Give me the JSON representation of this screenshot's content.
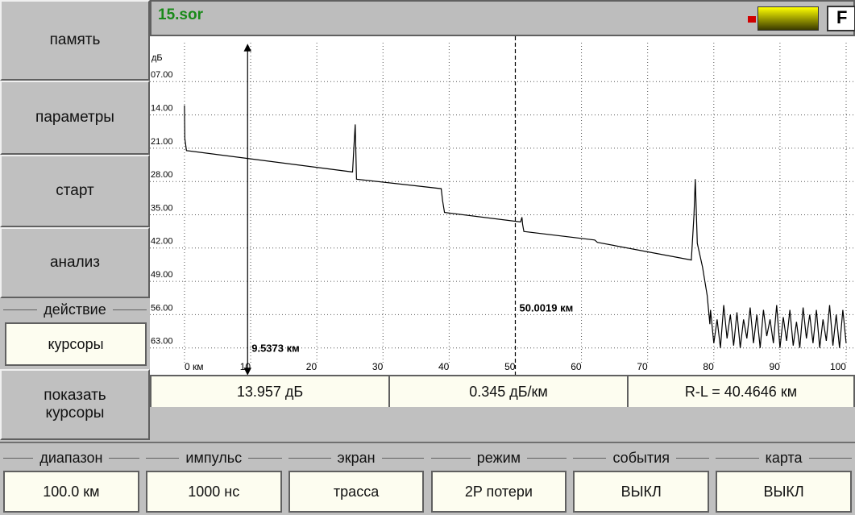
{
  "menu": [
    "память",
    "параметры",
    "старт",
    "анализ"
  ],
  "action": {
    "label": "действие",
    "value": "курсоры"
  },
  "show_cursors": "показать курсоры",
  "file": "15.sor",
  "flag": "F",
  "chart_data": {
    "type": "line",
    "y_unit": "дБ",
    "x": [
      0,
      0.05,
      0.3,
      25.4,
      25.6,
      25.8,
      26.0,
      38.8,
      39.0,
      39.3,
      50.8,
      51.0,
      51.1,
      51.3,
      62.0,
      62.4,
      76.6,
      77.0,
      77.2,
      77.5,
      78.3,
      79.0,
      79.4,
      79.5,
      80,
      80.5,
      81,
      81.5,
      82,
      82.5,
      83,
      83.5,
      84,
      84.5,
      85,
      85.5,
      86,
      86.5,
      87,
      87.5,
      88,
      88.5,
      89,
      89.5,
      90,
      90.5,
      91,
      91.5,
      92,
      92.5,
      93,
      93.5,
      94,
      94.5,
      95,
      95.5,
      96,
      96.5,
      97,
      97.5,
      98,
      98.5,
      99,
      99.5,
      100
    ],
    "series": [
      {
        "color": "#000000",
        "values": [
          12,
          19,
          21.5,
          26,
          21,
          16,
          27.5,
          29.5,
          32,
          34.5,
          36.5,
          35.5,
          37,
          38.5,
          40.3,
          40.8,
          44.5,
          35,
          27.5,
          41,
          46,
          52,
          58,
          55,
          62,
          57,
          63,
          54,
          61,
          56,
          62.5,
          55.5,
          63,
          57,
          61,
          54.5,
          62,
          56,
          63,
          55,
          60.5,
          57,
          62,
          54,
          63,
          56.5,
          61.5,
          55,
          62.5,
          57.5,
          63,
          54.5,
          61,
          56,
          62,
          55,
          63,
          57,
          61.5,
          54,
          62.5,
          56,
          63,
          55,
          62
        ]
      }
    ],
    "xlim": [
      -5.23,
      101.34
    ],
    "ylim": [
      -2.54,
      68.64
    ],
    "xticks": [
      {
        "value": 0,
        "label": "0 км"
      },
      10,
      20,
      30,
      40,
      50,
      60,
      70,
      80,
      90,
      100
    ],
    "yticks": [
      {
        "value": 7,
        "label": "07.00"
      },
      {
        "value": 14,
        "label": "14.00"
      },
      {
        "value": 21,
        "label": "21.00"
      },
      {
        "value": 28,
        "label": "28.00"
      },
      {
        "value": 35,
        "label": "35.00"
      },
      {
        "value": 42,
        "label": "42.00"
      },
      {
        "value": 49,
        "label": "49.00"
      },
      {
        "value": 56,
        "label": "56.00"
      },
      {
        "value": 63,
        "label": "63.00"
      }
    ],
    "grid": true,
    "cursors": [
      {
        "position": 9.5373,
        "label": "9.5373 км",
        "style": "solid"
      },
      {
        "position": 50.0019,
        "label": "50.0019 км",
        "style": "dashed"
      }
    ]
  },
  "readouts": [
    "13.957 дБ",
    "0.345 дБ/км",
    "R-L = 40.4646 км"
  ],
  "settings": [
    {
      "label": "диапазон",
      "value": "100.0 км"
    },
    {
      "label": "импульс",
      "value": "1000 нс"
    },
    {
      "label": "экран",
      "value": "трасса"
    },
    {
      "label": "режим",
      "value": "2P потери"
    },
    {
      "label": "события",
      "value": "ВЫКЛ"
    },
    {
      "label": "карта",
      "value": "ВЫКЛ"
    }
  ]
}
